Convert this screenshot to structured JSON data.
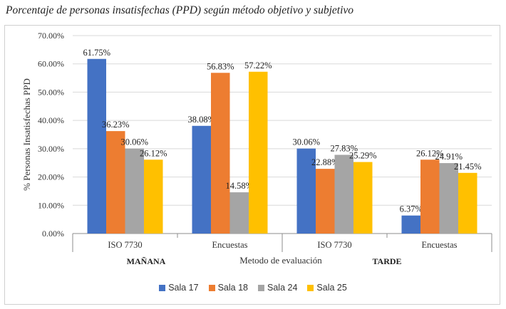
{
  "title": "Porcentaje de personas insatisfechas (PPD) según método objetivo y subjetivo",
  "chart_data": {
    "type": "bar",
    "title": "Porcentaje de personas insatisfechas (PPD) según método objetivo y subjetivo",
    "ylabel": "% Personas Insatisfechas PPD",
    "xlabel": "Metodo de evaluación",
    "ylim": [
      0,
      70
    ],
    "yticks": [
      "0.00%",
      "10.00%",
      "20.00%",
      "30.00%",
      "40.00%",
      "50.00%",
      "60.00%",
      "70.00%"
    ],
    "categories": [
      "ISO 7730",
      "Encuestas",
      "ISO 7730",
      "Encuestas"
    ],
    "groups": [
      "MAÑANA",
      "TARDE"
    ],
    "series": [
      {
        "name": "Sala 17",
        "color": "#4472c4",
        "values": [
          61.75,
          38.08,
          30.06,
          6.37
        ],
        "labels": [
          "61.75%",
          "38.08%",
          "30.06%",
          "6.37%"
        ]
      },
      {
        "name": "Sala 18",
        "color": "#ed7d31",
        "values": [
          36.23,
          56.83,
          22.88,
          26.12
        ],
        "labels": [
          "36.23%",
          "56.83%",
          "22.88%",
          "26.12%"
        ]
      },
      {
        "name": "Sala 24",
        "color": "#a5a5a5",
        "values": [
          30.06,
          14.58,
          27.83,
          24.91
        ],
        "labels": [
          "30.06%",
          "14.58%",
          "27.83%",
          "24.91%"
        ]
      },
      {
        "name": "Sala 25",
        "color": "#ffc000",
        "values": [
          26.12,
          57.22,
          25.29,
          21.45
        ],
        "labels": [
          "26.12%",
          "57.22%",
          "25.29%",
          "21.45%"
        ]
      }
    ],
    "grid": true,
    "legend_position": "bottom"
  }
}
